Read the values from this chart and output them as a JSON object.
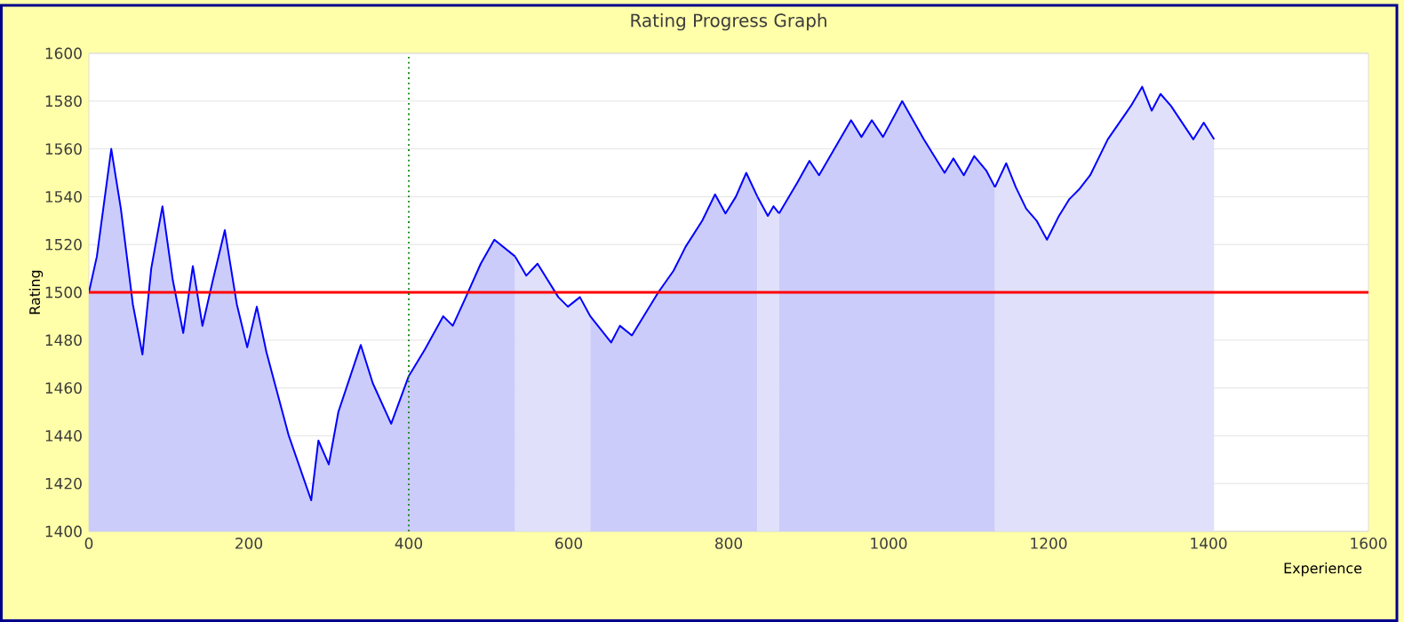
{
  "chart_data": {
    "type": "area",
    "title": "Rating Progress Graph",
    "xlabel": "Experience",
    "ylabel": "Rating",
    "xlim": [
      0,
      1600
    ],
    "xticks": [
      0,
      200,
      400,
      600,
      800,
      1000,
      1200,
      1400,
      1600
    ],
    "ylim": [
      1400,
      1600
    ],
    "yticks": [
      1400,
      1420,
      1440,
      1460,
      1480,
      1500,
      1520,
      1540,
      1560,
      1580,
      1600
    ],
    "grid": "y",
    "series": [
      {
        "color": "#ccccfa",
        "x": [
          0,
          10,
          28,
          40,
          55,
          67,
          78,
          92,
          105,
          118,
          130,
          142,
          155,
          170,
          185,
          198,
          210,
          222,
          250,
          278,
          287,
          300,
          312,
          340,
          355,
          378,
          400,
          420,
          443,
          455,
          470,
          490,
          507,
          533
        ],
        "values": [
          1500,
          1515,
          1560,
          1535,
          1495,
          1474,
          1510,
          1536,
          1505,
          1483,
          1511,
          1486,
          1505,
          1526,
          1495,
          1477,
          1494,
          1475,
          1440,
          1413,
          1438,
          1428,
          1450,
          1478,
          1462,
          1445,
          1465,
          1476,
          1490,
          1486,
          1497,
          1512,
          1522,
          1515
        ]
      },
      {
        "color": "#e0e0fa",
        "x": [
          533,
          547,
          561,
          587,
          599,
          614,
          627
        ],
        "values": [
          1515,
          1507,
          1512,
          1498,
          1494,
          1498,
          1490
        ]
      },
      {
        "color": "#ccccfa",
        "x": [
          627,
          653,
          664,
          679,
          712,
          731,
          746,
          767,
          783,
          796,
          809,
          822,
          836
        ],
        "values": [
          1490,
          1479,
          1486,
          1482,
          1500,
          1509,
          1519,
          1530,
          1541,
          1533,
          1540,
          1550,
          1540
        ]
      },
      {
        "color": "#e0e0fa",
        "x": [
          836,
          849,
          856,
          863
        ],
        "values": [
          1540,
          1532,
          1536,
          1533
        ]
      },
      {
        "color": "#ccccfa",
        "x": [
          863,
          886,
          901,
          913,
          953,
          966,
          979,
          993,
          1017,
          1044,
          1070,
          1081,
          1094,
          1107,
          1122,
          1133
        ],
        "values": [
          1533,
          1546,
          1555,
          1549,
          1572,
          1565,
          1572,
          1565,
          1580,
          1564,
          1550,
          1556,
          1549,
          1557,
          1551,
          1544
        ]
      },
      {
        "color": "#e0e0fa",
        "x": [
          1133,
          1147,
          1159,
          1172,
          1185,
          1198,
          1213,
          1226,
          1238,
          1252,
          1274,
          1303,
          1317,
          1329,
          1340,
          1353,
          1381,
          1394,
          1407
        ],
        "values": [
          1544,
          1554,
          1544,
          1535,
          1530,
          1522,
          1532,
          1539,
          1543,
          1549,
          1564,
          1578,
          1586,
          1576,
          1583,
          1578,
          1564,
          1571,
          1564
        ]
      }
    ],
    "ref_lines": [
      {
        "axis": "y",
        "value": 1500,
        "color": "#ff0000",
        "line_style": "solid"
      },
      {
        "axis": "x",
        "value": 400,
        "color": "#008000",
        "line_style": "dotted"
      }
    ]
  }
}
